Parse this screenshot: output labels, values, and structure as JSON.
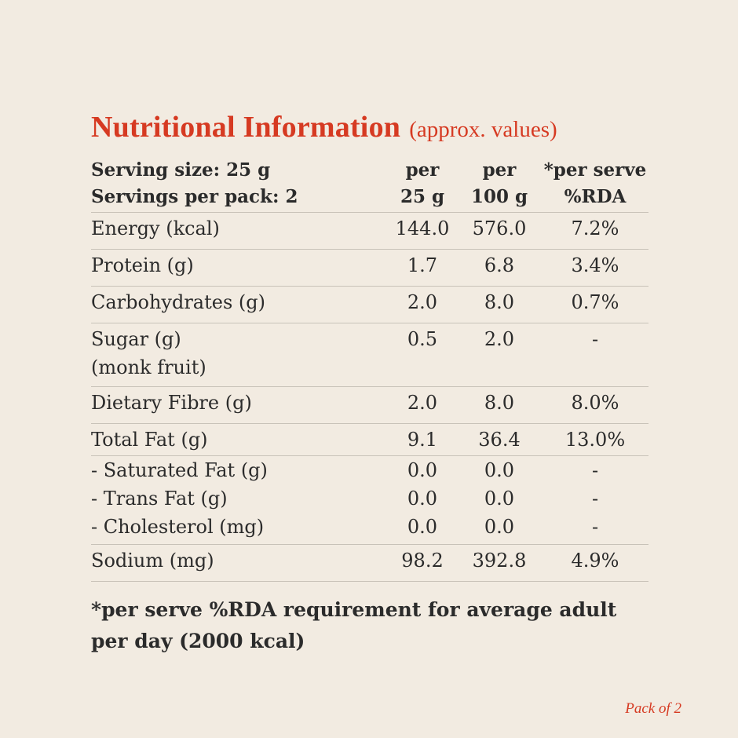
{
  "title": {
    "main": "Nutritional Information",
    "sub": "(approx. values)"
  },
  "header": {
    "serving_size": "Serving size: 25 g",
    "servings_per_pack": "Servings per pack: 2",
    "col_a_line1": "per",
    "col_a_line2": "25 g",
    "col_b_line1": "per",
    "col_b_line2": "100 g",
    "col_c_line1": "*per serve",
    "col_c_line2": "%RDA"
  },
  "rows": [
    {
      "label": "Energy (kcal)",
      "per25": "144.0",
      "per100": "576.0",
      "rda": "7.2%"
    },
    {
      "label": "Protein (g)",
      "per25": "1.7",
      "per100": "6.8",
      "rda": "3.4%"
    },
    {
      "label": "Carbohydrates (g)",
      "per25": "2.0",
      "per100": "8.0",
      "rda": "0.7%"
    },
    {
      "label": "Sugar (g)",
      "label2": "(monk fruit)",
      "per25": "0.5",
      "per100": "2.0",
      "rda": "-"
    },
    {
      "label": "Dietary Fibre (g)",
      "per25": "2.0",
      "per100": "8.0",
      "rda": "8.0%"
    },
    {
      "label": "Total Fat (g)",
      "per25": "9.1",
      "per100": "36.4",
      "rda": "13.0%"
    },
    {
      "label": "- Saturated Fat (g)",
      "per25": "0.0",
      "per100": "0.0",
      "rda": "-"
    },
    {
      "label": "- Trans Fat (g)",
      "per25": "0.0",
      "per100": "0.0",
      "rda": "-"
    },
    {
      "label": "- Cholesterol (mg)",
      "per25": "0.0",
      "per100": "0.0",
      "rda": "-"
    },
    {
      "label": "Sodium (mg)",
      "per25": "98.2",
      "per100": "392.8",
      "rda": "4.9%"
    }
  ],
  "footnote": {
    "line1": "*per serve %RDA requirement for average adult",
    "line2": "per day (2000 kcal)"
  },
  "pack_label": "Pack of 2",
  "colors": {
    "accent": "#d63a22",
    "background": "#f2ebe1",
    "text": "#2b2b2b",
    "divider": "#c8c2b8"
  }
}
